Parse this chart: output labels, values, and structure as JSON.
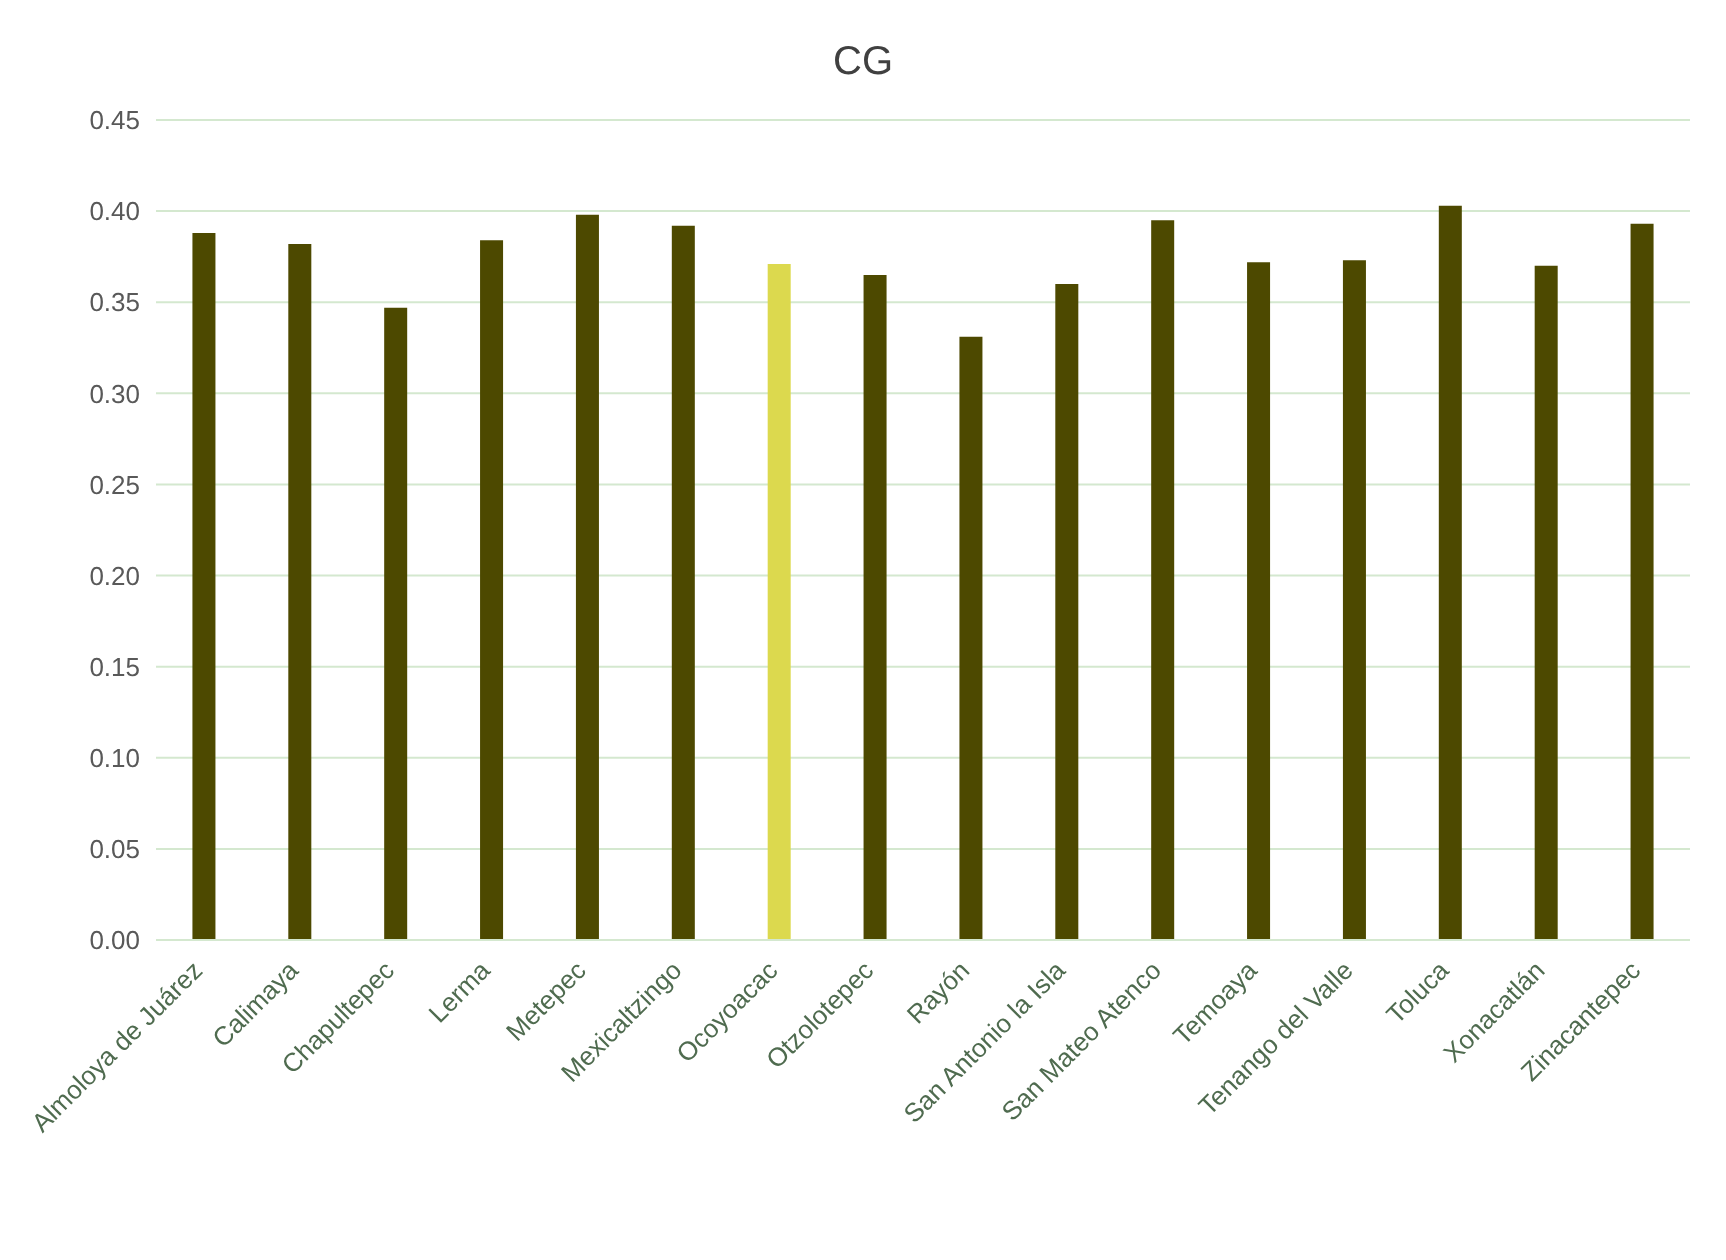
{
  "chart_data": {
    "type": "bar",
    "title": "CG",
    "categories": [
      "Almoloya de Juárez",
      "Calimaya",
      "Chapultepec",
      "Lerma",
      "Metepec",
      "Mexicaltzingo",
      "Ocoyoacac",
      "Otzolotepec",
      "Rayón",
      "San Antonio la Isla",
      "San Mateo Atenco",
      "Temoaya",
      "Tenango del Valle",
      "Toluca",
      "Xonacatlán",
      "Zinacantepec"
    ],
    "values": [
      0.388,
      0.382,
      0.347,
      0.384,
      0.398,
      0.392,
      0.371,
      0.365,
      0.331,
      0.36,
      0.395,
      0.372,
      0.373,
      0.403,
      0.37,
      0.393
    ],
    "colors": [
      "#4d4900",
      "#4d4900",
      "#4d4900",
      "#4d4900",
      "#4d4900",
      "#4d4900",
      "#dcd94e",
      "#4d4900",
      "#4d4900",
      "#4d4900",
      "#4d4900",
      "#4d4900",
      "#4d4900",
      "#4d4900",
      "#4d4900",
      "#4d4900"
    ],
    "ylim": [
      0,
      0.45
    ],
    "yticks": [
      {
        "value": 0,
        "label": "0.00"
      },
      0.05,
      {
        "value": 0.1,
        "label": "0.10"
      },
      0.15,
      {
        "value": 0.2,
        "label": "0.20"
      },
      0.25,
      {
        "value": 0.3,
        "label": "0.30"
      },
      0.35,
      {
        "value": 0.4,
        "label": "0.40"
      },
      0.45
    ],
    "grid": "y",
    "legend": false
  }
}
